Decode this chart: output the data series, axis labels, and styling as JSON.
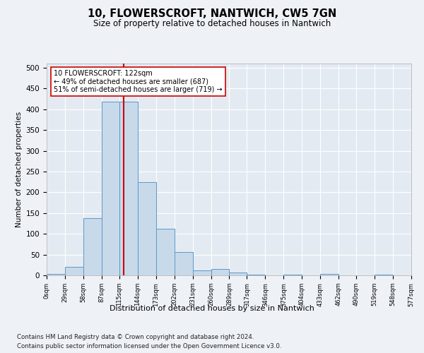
{
  "title1": "10, FLOWERSCROFT, NANTWICH, CW5 7GN",
  "title2": "Size of property relative to detached houses in Nantwich",
  "xlabel": "Distribution of detached houses by size in Nantwich",
  "ylabel": "Number of detached properties",
  "bin_edges": [
    0,
    29,
    58,
    87,
    115,
    144,
    173,
    202,
    231,
    260,
    289,
    317,
    346,
    375,
    404,
    433,
    462,
    490,
    519,
    548,
    577
  ],
  "bar_heights": [
    3,
    21,
    138,
    418,
    418,
    225,
    113,
    56,
    12,
    15,
    7,
    1,
    0,
    2,
    0,
    3,
    0,
    0,
    1,
    0
  ],
  "bar_color": "#c8d9ea",
  "bar_edge_color": "#5a9ac8",
  "property_size": 122,
  "vline_color": "#cc0000",
  "annotation_line1": "10 FLOWERSCROFT: 122sqm",
  "annotation_line2": "← 49% of detached houses are smaller (687)",
  "annotation_line3": "51% of semi-detached houses are larger (719) →",
  "annotation_box_color": "#ffffff",
  "annotation_box_edge": "#cc0000",
  "ylim": [
    0,
    510
  ],
  "yticks": [
    0,
    50,
    100,
    150,
    200,
    250,
    300,
    350,
    400,
    450,
    500
  ],
  "footer1": "Contains HM Land Registry data © Crown copyright and database right 2024.",
  "footer2": "Contains public sector information licensed under the Open Government Licence v3.0.",
  "bg_color": "#eef2f7",
  "plot_bg_color": "#e4eaf2"
}
